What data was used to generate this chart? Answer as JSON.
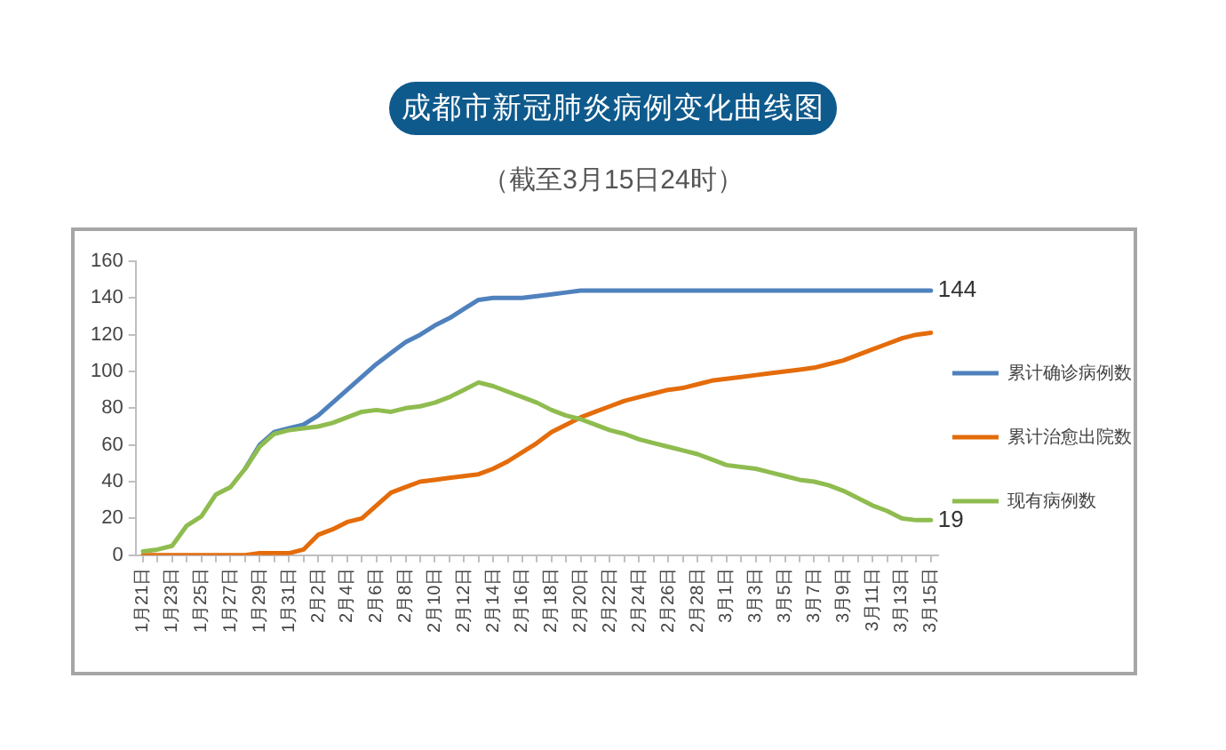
{
  "chart_data": {
    "type": "line",
    "title": "成都市新冠肺炎病例变化曲线图",
    "subtitle": "（截至3月15日24时）",
    "categories": [
      "1月21日",
      null,
      "1月23日",
      null,
      "1月25日",
      null,
      "1月27日",
      null,
      "1月29日",
      null,
      "1月31日",
      null,
      "2月2日",
      null,
      "2月4日",
      null,
      "2月6日",
      null,
      "2月8日",
      null,
      "2月10日",
      null,
      "2月12日",
      null,
      "2月14日",
      null,
      "2月16日",
      null,
      "2月18日",
      null,
      "2月20日",
      null,
      "2月22日",
      null,
      "2月24日",
      null,
      "2月26日",
      null,
      "2月28日",
      null,
      "3月1日",
      null,
      "3月3日",
      null,
      "3月5日",
      null,
      "3月7日",
      null,
      "3月9日",
      null,
      "3月11日",
      null,
      "3月13日",
      null,
      "3月15日"
    ],
    "series": [
      {
        "name": "累计确诊病例数",
        "color": "#4f81bd",
        "values": [
          null,
          null,
          null,
          null,
          null,
          null,
          null,
          47,
          60,
          67,
          69,
          71,
          76,
          83,
          90,
          97,
          104,
          110,
          116,
          120,
          125,
          129,
          134,
          139,
          140,
          140,
          140,
          141,
          142,
          143,
          144,
          144,
          144,
          144,
          144,
          144,
          144,
          144,
          144,
          144,
          144,
          144,
          144,
          144,
          144,
          144,
          144,
          144,
          144,
          144,
          144,
          144,
          144,
          144,
          144
        ],
        "value_labels": [
          null,
          null,
          null,
          null,
          null,
          null,
          null,
          null,
          null,
          null,
          null,
          null,
          null,
          null,
          null,
          null,
          null,
          null,
          null,
          null,
          null,
          null,
          null,
          null,
          null,
          null,
          null,
          null,
          null,
          null,
          null,
          null,
          null,
          null,
          null,
          null,
          null,
          null,
          null,
          null,
          null,
          null,
          null,
          null,
          null,
          null,
          null,
          null,
          null,
          null,
          null,
          null,
          null,
          null,
          "144"
        ]
      },
      {
        "name": "累计治愈出院数",
        "color": "#e46c0a",
        "values": [
          0,
          0,
          0,
          0,
          0,
          0,
          0,
          0,
          1,
          1,
          1,
          3,
          11,
          14,
          18,
          20,
          27,
          34,
          37,
          40,
          41,
          42,
          43,
          44,
          47,
          51,
          56,
          61,
          67,
          71,
          75,
          78,
          81,
          84,
          86,
          88,
          90,
          91,
          93,
          95,
          96,
          97,
          98,
          99,
          100,
          101,
          102,
          104,
          106,
          109,
          112,
          115,
          118,
          120,
          121
        ]
      },
      {
        "name": "现有病例数",
        "color": "#8fbc4f",
        "values": [
          2,
          3,
          5,
          16,
          21,
          33,
          37,
          47,
          59,
          66,
          68,
          69,
          70,
          72,
          75,
          78,
          79,
          78,
          80,
          81,
          83,
          86,
          90,
          94,
          92,
          89,
          86,
          83,
          79,
          76,
          74,
          71,
          68,
          66,
          63,
          61,
          59,
          57,
          55,
          52,
          49,
          48,
          47,
          45,
          43,
          41,
          40,
          38,
          35,
          31,
          27,
          24,
          20,
          19,
          19
        ],
        "value_labels": [
          null,
          null,
          null,
          null,
          null,
          null,
          null,
          null,
          null,
          null,
          null,
          null,
          null,
          null,
          null,
          null,
          null,
          null,
          null,
          null,
          null,
          null,
          null,
          null,
          null,
          null,
          null,
          null,
          null,
          null,
          null,
          null,
          null,
          null,
          null,
          null,
          null,
          null,
          null,
          null,
          null,
          null,
          null,
          null,
          null,
          null,
          null,
          null,
          null,
          null,
          null,
          null,
          null,
          null,
          "19"
        ]
      }
    ],
    "ylim": [
      0,
      160
    ],
    "yticks": [
      0,
      20,
      40,
      60,
      80,
      100,
      120,
      140,
      160
    ],
    "grid": false,
    "legend": "right",
    "marker": "none"
  }
}
